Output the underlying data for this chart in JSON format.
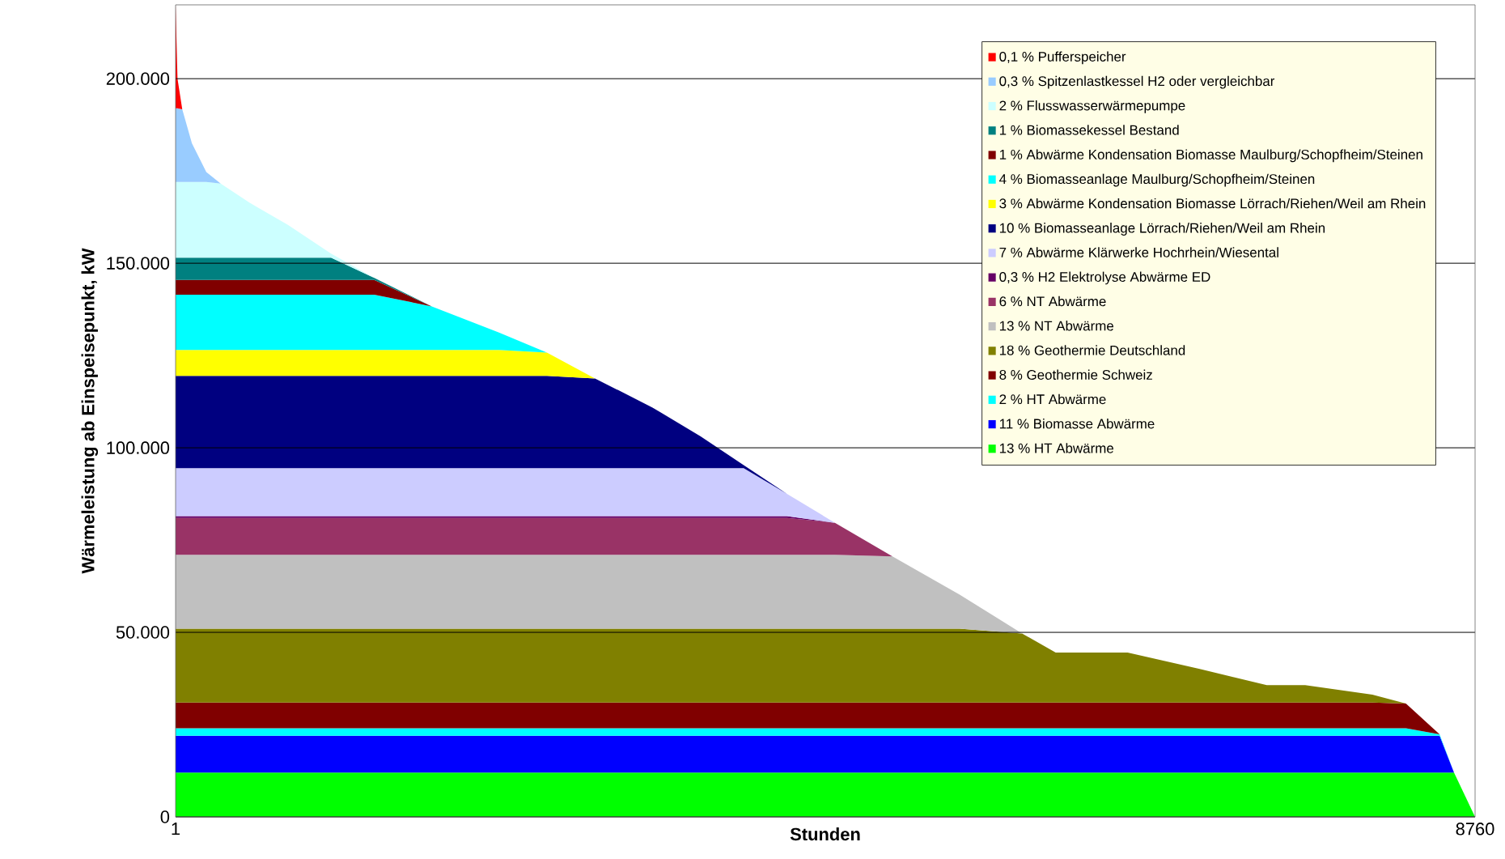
{
  "chart_data": {
    "type": "area",
    "stacked": true,
    "xlabel": "Stunden",
    "ylabel": "Wärmeleistung ab Einspeisepunkt, kW",
    "x": [
      1,
      14,
      46,
      111,
      208,
      305,
      499,
      758,
      1049,
      1340,
      1728,
      2181,
      2504,
      2828,
      3216,
      3540,
      3830,
      4122,
      4445,
      4833,
      5286,
      5707,
      5933,
      6418,
      6904,
      7356,
      7615,
      8068,
      8294,
      8521,
      8618,
      8760
    ],
    "xlim": [
      1,
      8760
    ],
    "xticks": [
      1,
      8760
    ],
    "ylim": [
      0,
      220000
    ],
    "yticks": [
      0,
      {
        "value": 50000,
        "label": "50.000"
      },
      {
        "value": 100000,
        "label": "100.000"
      },
      {
        "value": 150000,
        "label": "150.000"
      },
      {
        "value": 200000,
        "label": "200.000"
      }
    ],
    "grid": "y",
    "legend": "top right",
    "series": [
      {
        "name": "13 % HT Abwärme",
        "color": "#00ff00",
        "values": [
          12000,
          12000,
          12000,
          12000,
          12000,
          12000,
          12000,
          12000,
          12000,
          12000,
          12000,
          12000,
          12000,
          12000,
          12000,
          12000,
          12000,
          12000,
          12000,
          12000,
          12000,
          12000,
          12000,
          12000,
          12000,
          12000,
          12000,
          12000,
          12000,
          12000,
          12000,
          0
        ]
      },
      {
        "name": "11 % Biomasse Abwärme",
        "color": "#0000ff",
        "values": [
          10000,
          10000,
          10000,
          10000,
          10000,
          10000,
          10000,
          10000,
          10000,
          10000,
          10000,
          10000,
          10000,
          10000,
          10000,
          10000,
          10000,
          10000,
          10000,
          10000,
          10000,
          10000,
          10000,
          10000,
          10000,
          10000,
          10000,
          10000,
          10000,
          10000,
          0,
          0
        ]
      },
      {
        "name": "2 % HT Abwärme",
        "color": "#00ffff",
        "values": [
          2000,
          2000,
          2000,
          2000,
          2000,
          2000,
          2000,
          2000,
          2000,
          2000,
          2000,
          2000,
          2000,
          2000,
          2000,
          2000,
          2000,
          2000,
          2000,
          2000,
          2000,
          2000,
          2000,
          2000,
          2000,
          2000,
          2000,
          2000,
          2000,
          400,
          0,
          0
        ]
      },
      {
        "name": "8 % Geothermie Schweiz",
        "color": "#800000",
        "values": [
          7000,
          7000,
          7000,
          7000,
          7000,
          7000,
          7000,
          7000,
          7000,
          7000,
          7000,
          7000,
          7000,
          7000,
          7000,
          7000,
          7000,
          7000,
          7000,
          7000,
          7000,
          7000,
          7000,
          7000,
          7000,
          7000,
          7000,
          7000,
          6700,
          0,
          0,
          0
        ]
      },
      {
        "name": "18 % Geothermie Deutschland",
        "color": "#808000",
        "values": [
          20000,
          20000,
          20000,
          20000,
          20000,
          20000,
          20000,
          20000,
          20000,
          20000,
          20000,
          20000,
          20000,
          20000,
          20000,
          20000,
          20000,
          20000,
          20000,
          20000,
          20000,
          18700,
          13500,
          13500,
          9100,
          4700,
          4700,
          2100,
          0,
          0,
          0,
          0
        ]
      },
      {
        "name": "13 % NT Abwärme",
        "color": "#c0c0c0",
        "values": [
          20000,
          20000,
          20000,
          20000,
          20000,
          20000,
          20000,
          20000,
          20000,
          20000,
          20000,
          20000,
          20000,
          20000,
          20000,
          20000,
          20000,
          20000,
          20000,
          19600,
          9200,
          0,
          0,
          0,
          0,
          0,
          0,
          0,
          0,
          0,
          0,
          0
        ]
      },
      {
        "name": "6 % NT Abwärme",
        "color": "#993366",
        "values": [
          10000,
          10000,
          10000,
          10000,
          10000,
          10000,
          10000,
          10000,
          10000,
          10000,
          10000,
          10000,
          10000,
          10000,
          10000,
          10000,
          10000,
          10000,
          8700,
          0,
          0,
          0,
          0,
          0,
          0,
          0,
          0,
          0,
          0,
          0,
          0,
          0
        ]
      },
      {
        "name": "0,3 % H2 Elektrolyse Abwärme ED",
        "color": "#660066",
        "values": [
          500,
          500,
          500,
          500,
          500,
          500,
          500,
          500,
          500,
          500,
          500,
          500,
          500,
          500,
          500,
          500,
          500,
          500,
          0,
          0,
          0,
          0,
          0,
          0,
          0,
          0,
          0,
          0,
          0,
          0,
          0,
          0
        ]
      },
      {
        "name": "7 % Abwärme Klärwerke Hochrhein/Wiesental",
        "color": "#ccccff",
        "values": [
          13000,
          13000,
          13000,
          13000,
          13000,
          13000,
          13000,
          13000,
          13000,
          13000,
          13000,
          13000,
          13000,
          13000,
          13000,
          13000,
          13000,
          6000,
          0,
          0,
          0,
          0,
          0,
          0,
          0,
          0,
          0,
          0,
          0,
          0,
          0,
          0
        ]
      },
      {
        "name": "10 % Biomasseanlage Lörrach/Riehen/Weil am Rhein",
        "color": "#000080",
        "values": [
          25000,
          25000,
          25000,
          25000,
          25000,
          25000,
          25000,
          25000,
          25000,
          25000,
          25000,
          25000,
          25000,
          24300,
          16400,
          8600,
          800,
          0,
          0,
          0,
          0,
          0,
          0,
          0,
          0,
          0,
          0,
          0,
          0,
          0,
          0,
          0
        ]
      },
      {
        "name": "3 % Abwärme Kondensation Biomasse Lörrach/Riehen/Weil am Rhein",
        "color": "#ffff00",
        "values": [
          7000,
          7000,
          7000,
          7000,
          7000,
          7000,
          7000,
          7000,
          7000,
          7000,
          7000,
          7000,
          6300,
          0,
          0,
          0,
          0,
          0,
          0,
          0,
          0,
          0,
          0,
          0,
          0,
          0,
          0,
          0,
          0,
          0,
          0,
          0
        ]
      },
      {
        "name": "4 % Biomasseanlage Maulburg/Schopfheim/Steinen",
        "color": "#00ffff",
        "values": [
          15000,
          15000,
          15000,
          15000,
          15000,
          15000,
          15000,
          15000,
          15000,
          15000,
          11800,
          4700,
          0,
          0,
          0,
          0,
          0,
          0,
          0,
          0,
          0,
          0,
          0,
          0,
          0,
          0,
          0,
          0,
          0,
          0,
          0,
          0
        ]
      },
      {
        "name": "1 % Abwärme Kondensation Biomasse Maulburg/Schopfheim/Steinen",
        "color": "#800000",
        "values": [
          4000,
          4000,
          4000,
          4000,
          4000,
          4000,
          4000,
          4000,
          4000,
          4000,
          0,
          0,
          0,
          0,
          0,
          0,
          0,
          0,
          0,
          0,
          0,
          0,
          0,
          0,
          0,
          0,
          0,
          0,
          0,
          0,
          0,
          0
        ]
      },
      {
        "name": "1 % Biomassekessel Bestand",
        "color": "#008080",
        "values": [
          6000,
          6000,
          6000,
          6000,
          6000,
          6000,
          6000,
          6000,
          6000,
          500,
          0,
          0,
          0,
          0,
          0,
          0,
          0,
          0,
          0,
          0,
          0,
          0,
          0,
          0,
          0,
          0,
          0,
          0,
          0,
          0,
          0,
          0
        ]
      },
      {
        "name": "2 % Flusswasserwärmepumpe",
        "color": "#ccffff",
        "values": [
          20500,
          20500,
          20500,
          20500,
          20500,
          20100,
          14900,
          8900,
          1100,
          0,
          0,
          0,
          0,
          0,
          0,
          0,
          0,
          0,
          0,
          0,
          0,
          0,
          0,
          0,
          0,
          0,
          0,
          0,
          0,
          0,
          0,
          0
        ]
      },
      {
        "name": "0,3 % Spitzenlastkessel H2 oder vergleichbar",
        "color": "#99ccff",
        "values": [
          20000,
          20000,
          19700,
          10500,
          2700,
          0,
          0,
          0,
          0,
          0,
          0,
          0,
          0,
          0,
          0,
          0,
          0,
          0,
          0,
          0,
          0,
          0,
          0,
          0,
          0,
          0,
          0,
          0,
          0,
          0,
          0,
          0
        ]
      },
      {
        "name": "0,1 % Pufferspeicher",
        "color": "#ff0000",
        "values": [
          28000,
          8000,
          0,
          0,
          0,
          0,
          0,
          0,
          0,
          0,
          0,
          0,
          0,
          0,
          0,
          0,
          0,
          0,
          0,
          0,
          0,
          0,
          0,
          0,
          0,
          0,
          0,
          0,
          0,
          0,
          0,
          0
        ]
      }
    ]
  }
}
